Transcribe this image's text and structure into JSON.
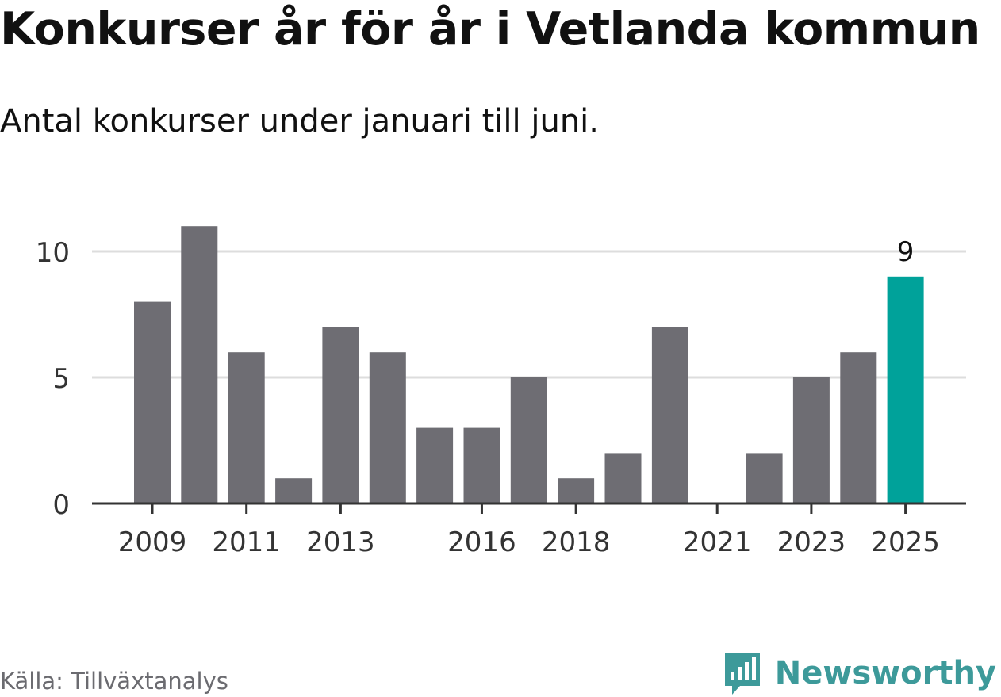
{
  "title": "Konkurser år för år i Vetlanda kommun",
  "subtitle": "Antal konkurser under januari till juni.",
  "source": "Källa: Tillväxtanalys",
  "brand": {
    "name": "Newsworthy",
    "icon": "newsworthy-logo-icon"
  },
  "colors": {
    "bar": "#6e6d73",
    "highlight": "#00a29a",
    "grid": "#dddddd",
    "axis": "#333333",
    "brand": "#3d9a9a"
  },
  "chart_data": {
    "type": "bar",
    "categories": [
      "2009",
      "2010",
      "2011",
      "2012",
      "2013",
      "2014",
      "2015",
      "2016",
      "2017",
      "2018",
      "2019",
      "2020",
      "2021",
      "2022",
      "2023",
      "2024",
      "2025"
    ],
    "values": [
      8,
      11,
      6,
      1,
      7,
      6,
      3,
      3,
      5,
      1,
      2,
      7,
      0,
      2,
      5,
      6,
      9
    ],
    "tick_labels_x": [
      "2009",
      "2011",
      "2013",
      "2016",
      "2018",
      "2021",
      "2023",
      "2025"
    ],
    "yticks": [
      0,
      5,
      10
    ],
    "ylim": [
      0,
      11
    ],
    "highlight": {
      "category": "2025",
      "label": "9"
    },
    "grid": true,
    "legend": "none"
  }
}
